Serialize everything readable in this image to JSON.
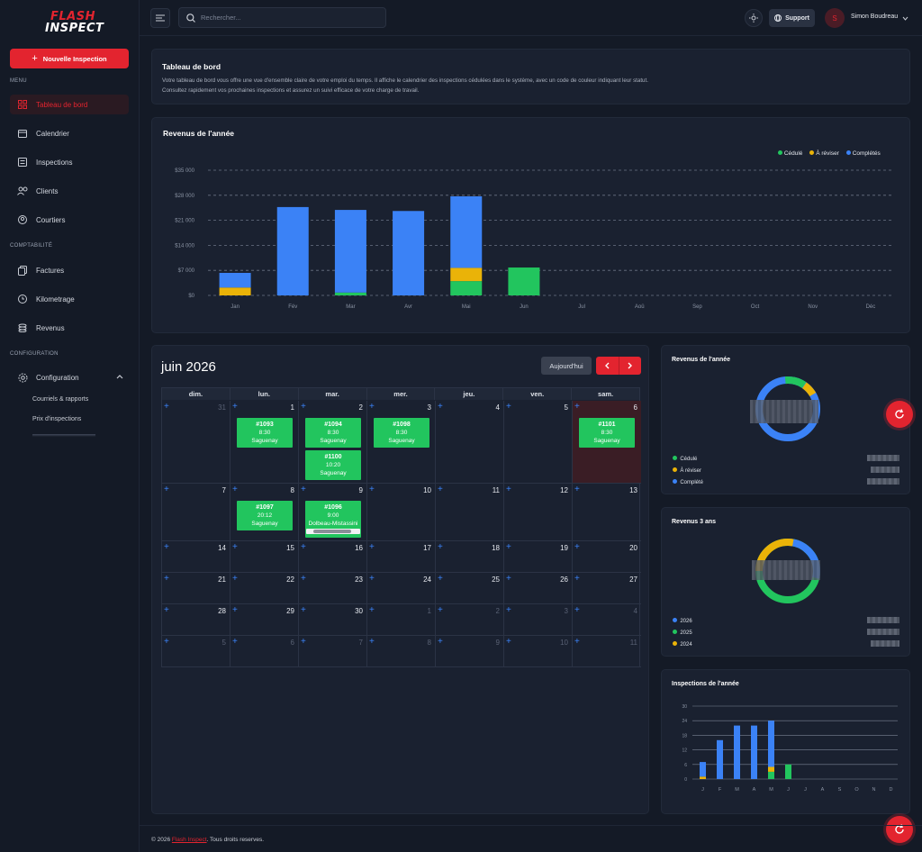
{
  "brand": {
    "line1": "FLASH",
    "line2": "INSPECT"
  },
  "sidebar": {
    "new_button": "Nouvelle Inspection",
    "section_menu": "MENU",
    "section_compta": "COMPTABILITÉ",
    "section_config": "CONFIGURATION",
    "items": [
      {
        "label": "Tableau de bord",
        "icon": "grid-icon"
      },
      {
        "label": "Calendrier",
        "icon": "calendar-icon"
      },
      {
        "label": "Inspections",
        "icon": "list-icon"
      },
      {
        "label": "Clients",
        "icon": "users-icon"
      },
      {
        "label": "Courtiers",
        "icon": "user-icon"
      },
      {
        "label": "Factures",
        "icon": "documents-icon"
      },
      {
        "label": "Kilometrage",
        "icon": "clock-icon"
      },
      {
        "label": "Revenus",
        "icon": "coins-icon"
      },
      {
        "label": "Configuration",
        "icon": "gear-icon"
      }
    ],
    "sub_items": [
      "Courriels & rapports",
      "Prix d'inspections"
    ]
  },
  "topbar": {
    "search_placeholder": "Rechercher...",
    "support": "Support",
    "avatar_initial": "S",
    "user_name": "Simon Boudreau"
  },
  "intro": {
    "title": "Tableau de bord",
    "line1": "Votre tableau de bord vous offre une vue d'ensemble claire de votre emploi du temps. Il affiche le calendrier des inspections cédulées dans le système, avec un code de couleur indiquant leur statut.",
    "line2": "Consultez rapidement vos prochaines inspections et assurez un suivi efficace de votre charge de travail."
  },
  "colors": {
    "cedule": "#22c55e",
    "a_reviser": "#eab308",
    "completes": "#3b82f6",
    "accent": "#e3242f"
  },
  "revenue": {
    "title": "Revenus de l'année",
    "legend": [
      "Cédulé",
      "À réviser",
      "Complétés"
    ]
  },
  "chart_data": [
    {
      "type": "bar",
      "title": "Revenus de l'année",
      "categories": [
        "Jan",
        "Fév",
        "Mar",
        "Avr",
        "Mai",
        "Jun",
        "Jul",
        "Aoû",
        "Sep",
        "Oct",
        "Nov",
        "Déc"
      ],
      "series": [
        {
          "name": "Cédulé",
          "values": [
            0,
            0,
            800,
            0,
            4000,
            7800,
            0,
            0,
            0,
            0,
            0,
            0
          ]
        },
        {
          "name": "À réviser",
          "values": [
            2200,
            0,
            0,
            0,
            3700,
            0,
            0,
            0,
            0,
            0,
            0,
            0
          ]
        },
        {
          "name": "Complétés",
          "values": [
            4100,
            24700,
            23100,
            23600,
            20000,
            0,
            0,
            0,
            0,
            0,
            0,
            0
          ]
        }
      ],
      "stacked": true,
      "ylim": [
        0,
        35000
      ],
      "yticks": [
        "$0",
        "$7 000",
        "$14 000",
        "$21 000",
        "$28 000",
        "$35 000"
      ],
      "grid": true,
      "legend_position": "top-right"
    },
    {
      "type": "bar",
      "title": "Inspections de l'année",
      "categories": [
        "J",
        "F",
        "M",
        "A",
        "M",
        "J",
        "J",
        "A",
        "S",
        "O",
        "N",
        "D"
      ],
      "series": [
        {
          "name": "Cédulé",
          "values": [
            0,
            0,
            0,
            0,
            3,
            6,
            0,
            0,
            0,
            0,
            0,
            0
          ]
        },
        {
          "name": "À réviser",
          "values": [
            1,
            0,
            0,
            0,
            2,
            0,
            0,
            0,
            0,
            0,
            0,
            0
          ]
        },
        {
          "name": "Complétés",
          "values": [
            6,
            16,
            22,
            22,
            19,
            0,
            0,
            0,
            0,
            0,
            0,
            0
          ]
        }
      ],
      "stacked": true,
      "ylim": [
        0,
        30
      ],
      "yticks": [
        "0",
        "6",
        "12",
        "18",
        "24",
        "30"
      ],
      "grid": true
    }
  ],
  "calendar": {
    "title": "juin 2026",
    "today": "Aujourd'hui",
    "days": [
      "dim.",
      "lun.",
      "mar.",
      "mer.",
      "jeu.",
      "ven.",
      "sam."
    ],
    "weeks": [
      [
        {
          "d": "31",
          "dim": true
        },
        {
          "d": "1"
        },
        {
          "d": "2"
        },
        {
          "d": "3"
        },
        {
          "d": "4"
        },
        {
          "d": "5"
        },
        {
          "d": "6",
          "today": true
        }
      ],
      [
        {
          "d": "7"
        },
        {
          "d": "8"
        },
        {
          "d": "9"
        },
        {
          "d": "10"
        },
        {
          "d": "11"
        },
        {
          "d": "12"
        },
        {
          "d": "13"
        }
      ],
      [
        {
          "d": "14"
        },
        {
          "d": "15"
        },
        {
          "d": "16"
        },
        {
          "d": "17"
        },
        {
          "d": "18"
        },
        {
          "d": "19"
        },
        {
          "d": "20"
        }
      ],
      [
        {
          "d": "21"
        },
        {
          "d": "22"
        },
        {
          "d": "23"
        },
        {
          "d": "24"
        },
        {
          "d": "25"
        },
        {
          "d": "26"
        },
        {
          "d": "27"
        }
      ],
      [
        {
          "d": "28"
        },
        {
          "d": "29"
        },
        {
          "d": "30"
        },
        {
          "d": "1",
          "dim": true
        },
        {
          "d": "2",
          "dim": true
        },
        {
          "d": "3",
          "dim": true
        },
        {
          "d": "4",
          "dim": true
        }
      ],
      [
        {
          "d": "5",
          "dim": true
        },
        {
          "d": "6",
          "dim": true
        },
        {
          "d": "7",
          "dim": true
        },
        {
          "d": "8",
          "dim": true
        },
        {
          "d": "9",
          "dim": true
        },
        {
          "d": "10",
          "dim": true
        },
        {
          "d": "11",
          "dim": true
        }
      ]
    ],
    "events": [
      {
        "id": "#1093",
        "time": "8:30",
        "city": "Saguenay",
        "week": 0,
        "day": 1,
        "slot": 0
      },
      {
        "id": "#1094",
        "time": "8:30",
        "city": "Saguenay",
        "week": 0,
        "day": 2,
        "slot": 0
      },
      {
        "id": "#1100",
        "time": "10:20",
        "city": "Saguenay",
        "week": 0,
        "day": 2,
        "slot": 1
      },
      {
        "id": "#1098",
        "time": "8:30",
        "city": "Saguenay",
        "week": 0,
        "day": 3,
        "slot": 0
      },
      {
        "id": "#1101",
        "time": "8:30",
        "city": "Saguenay",
        "week": 0,
        "day": 6,
        "slot": 0
      },
      {
        "id": "#1097",
        "time": "20:12",
        "city": "Saguenay",
        "week": 1,
        "day": 1,
        "slot": 0
      },
      {
        "id": "#1096",
        "time": "9:00",
        "city": "Dolbeau-Mistassini",
        "week": 1,
        "day": 2,
        "slot": 0
      }
    ]
  },
  "donut_year": {
    "title": "Revenus de l'année",
    "legend": [
      "Cédulé",
      "À réviser",
      "Complété"
    ]
  },
  "donut_3y": {
    "title": "Revenus 3 ans",
    "legend": [
      "2026",
      "2025",
      "2024"
    ]
  },
  "inspections": {
    "title": "Inspections de l'année"
  },
  "footer": {
    "prefix": "© 2026 ",
    "brand": "Flash Inspect",
    "suffix": ". Tous droits reserves."
  }
}
